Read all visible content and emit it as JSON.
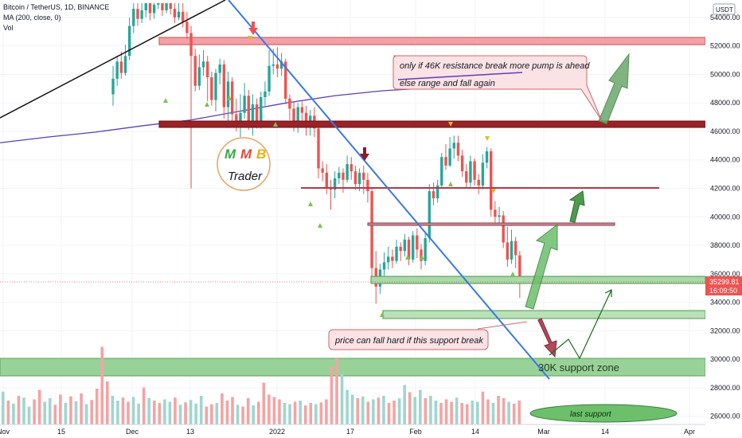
{
  "legend": {
    "line1": "Bitcoin / TetherUS, 1D, BINANCE",
    "line2": "MA (200, close, 0)",
    "line3": "Vol"
  },
  "currency_badge": "USDT",
  "price_axis_ticks": [
    "54000.00",
    "52000.00",
    "50000.00",
    "48000.00",
    "46000.00",
    "44000.00",
    "42000.00",
    "40000.00",
    "38000.00",
    "36000.00",
    "34000.00",
    "32000.00",
    "30000.00",
    "28000.00",
    "26000.00"
  ],
  "time_axis_ticks": [
    "Nov",
    "15",
    "Dec",
    "13",
    "2022",
    "17",
    "Feb",
    "14",
    "Mar",
    "14",
    "Apr"
  ],
  "last_price_tag": {
    "price": "35299.81",
    "countdown": "16:09:50"
  },
  "annotations": {
    "resistance_note_line1": "only if 46K resistance break more pump is ahead",
    "resistance_note_line2": "else range and fall again",
    "support_note": "price can fall hard if this support break",
    "support_zone": "30K support zone",
    "last_support": "last support"
  },
  "logo": {
    "letters": [
      "M",
      "M",
      "B"
    ],
    "name": "Trader"
  },
  "colors": {
    "up": "#26a69a",
    "down": "#ef5350",
    "ma": "#5b3fb8",
    "trendline": "#3b78e7",
    "resistance": "#8b1a1a",
    "pink_zone": "#f5a0a8",
    "support": "#7cc27c",
    "arrow_green": "#4f9a4f",
    "arrow_red": "#b5485a",
    "price_tag": "#ef5350"
  },
  "chart_data": {
    "type": "candlestick",
    "symbol": "Bitcoin / TetherUS",
    "interval": "1D",
    "exchange": "BINANCE",
    "y_range": [
      25700,
      55000
    ],
    "last_price": 35299.81,
    "ma_200": [
      [
        0,
        45200
      ],
      [
        60,
        45600
      ],
      [
        120,
        45950
      ],
      [
        180,
        46400
      ],
      [
        240,
        46800
      ],
      [
        300,
        47400
      ],
      [
        360,
        48000
      ],
      [
        420,
        48500
      ],
      [
        480,
        48850
      ],
      [
        540,
        49050
      ],
      [
        600,
        49150
      ],
      [
        656,
        49250
      ]
    ],
    "candles": [
      {
        "o": 48600,
        "c": 49700,
        "h": 50600,
        "l": 47800
      },
      {
        "o": 49700,
        "c": 50900,
        "h": 51300,
        "l": 49200
      },
      {
        "o": 50900,
        "c": 50100,
        "h": 51600,
        "l": 49700
      },
      {
        "o": 50100,
        "c": 51300,
        "h": 52100,
        "l": 49900
      },
      {
        "o": 51300,
        "c": 53400,
        "h": 54000,
        "l": 51000
      },
      {
        "o": 53400,
        "c": 54600,
        "h": 55000,
        "l": 52900
      },
      {
        "o": 54600,
        "c": 53900,
        "h": 55000,
        "l": 53400
      },
      {
        "o": 53900,
        "c": 54500,
        "h": 55000,
        "l": 53600
      },
      {
        "o": 54500,
        "c": 55000,
        "h": 55000,
        "l": 54000
      },
      {
        "o": 55000,
        "c": 54300,
        "h": 55000,
        "l": 53800
      },
      {
        "o": 54300,
        "c": 54900,
        "h": 55000,
        "l": 53900
      },
      {
        "o": 54900,
        "c": 55000,
        "h": 55000,
        "l": 54600
      },
      {
        "o": 55000,
        "c": 54500,
        "h": 55000,
        "l": 54100
      },
      {
        "o": 54500,
        "c": 55000,
        "h": 55000,
        "l": 54300
      },
      {
        "o": 55000,
        "c": 54600,
        "h": 55000,
        "l": 54200
      },
      {
        "o": 54600,
        "c": 54000,
        "h": 55000,
        "l": 53600
      },
      {
        "o": 54000,
        "c": 54400,
        "h": 55000,
        "l": 53800
      },
      {
        "o": 54400,
        "c": 53700,
        "h": 55000,
        "l": 53300
      },
      {
        "o": 53700,
        "c": 52900,
        "h": 54400,
        "l": 52500
      },
      {
        "o": 52900,
        "c": 51300,
        "h": 53400,
        "l": 42000
      },
      {
        "o": 51300,
        "c": 49200,
        "h": 51800,
        "l": 48800
      },
      {
        "o": 49200,
        "c": 50500,
        "h": 51400,
        "l": 48900
      },
      {
        "o": 50500,
        "c": 50900,
        "h": 51700,
        "l": 49900
      },
      {
        "o": 50900,
        "c": 49800,
        "h": 51300,
        "l": 48100
      },
      {
        "o": 49800,
        "c": 48200,
        "h": 50200,
        "l": 47800
      },
      {
        "o": 48200,
        "c": 50100,
        "h": 50400,
        "l": 47400
      },
      {
        "o": 50100,
        "c": 50700,
        "h": 51100,
        "l": 49300
      },
      {
        "o": 50700,
        "c": 47700,
        "h": 51000,
        "l": 46900
      },
      {
        "o": 47700,
        "c": 49500,
        "h": 50200,
        "l": 46700
      },
      {
        "o": 49500,
        "c": 47200,
        "h": 49800,
        "l": 46500
      },
      {
        "o": 47200,
        "c": 46300,
        "h": 48300,
        "l": 46000
      },
      {
        "o": 46300,
        "c": 47300,
        "h": 48600,
        "l": 45600
      },
      {
        "o": 47300,
        "c": 48500,
        "h": 49400,
        "l": 46900
      },
      {
        "o": 48500,
        "c": 46400,
        "h": 48900,
        "l": 46100
      },
      {
        "o": 46400,
        "c": 47900,
        "h": 48600,
        "l": 45700
      },
      {
        "o": 47900,
        "c": 46600,
        "h": 48300,
        "l": 46200
      },
      {
        "o": 46600,
        "c": 48400,
        "h": 48800,
        "l": 46200
      },
      {
        "o": 48400,
        "c": 48800,
        "h": 49500,
        "l": 47800
      },
      {
        "o": 48800,
        "c": 50600,
        "h": 51700,
        "l": 48500
      },
      {
        "o": 50600,
        "c": 50700,
        "h": 51800,
        "l": 50000
      },
      {
        "o": 50700,
        "c": 50400,
        "h": 51900,
        "l": 49800
      },
      {
        "o": 50400,
        "c": 50900,
        "h": 51500,
        "l": 49900
      },
      {
        "o": 50900,
        "c": 48300,
        "h": 51100,
        "l": 47900
      },
      {
        "o": 48300,
        "c": 47600,
        "h": 48600,
        "l": 46800
      },
      {
        "o": 47600,
        "c": 46400,
        "h": 48100,
        "l": 46000
      },
      {
        "o": 46400,
        "c": 47700,
        "h": 48000,
        "l": 45900
      },
      {
        "o": 47700,
        "c": 47300,
        "h": 48100,
        "l": 46600
      },
      {
        "o": 47300,
        "c": 46400,
        "h": 47800,
        "l": 45700
      },
      {
        "o": 46400,
        "c": 47100,
        "h": 47500,
        "l": 45700
      },
      {
        "o": 47100,
        "c": 46200,
        "h": 47700,
        "l": 45600
      },
      {
        "o": 46200,
        "c": 43400,
        "h": 46600,
        "l": 42700
      },
      {
        "o": 43400,
        "c": 43100,
        "h": 43900,
        "l": 42500
      },
      {
        "o": 43100,
        "c": 42000,
        "h": 43700,
        "l": 41600
      },
      {
        "o": 42000,
        "c": 41900,
        "h": 42600,
        "l": 40500
      },
      {
        "o": 41900,
        "c": 42700,
        "h": 43200,
        "l": 41300
      },
      {
        "o": 42700,
        "c": 43100,
        "h": 43500,
        "l": 42300
      },
      {
        "o": 43100,
        "c": 42600,
        "h": 43400,
        "l": 41700
      },
      {
        "o": 42600,
        "c": 43700,
        "h": 44300,
        "l": 42400
      },
      {
        "o": 43700,
        "c": 43200,
        "h": 44200,
        "l": 42600
      },
      {
        "o": 43200,
        "c": 42300,
        "h": 43600,
        "l": 41900
      },
      {
        "o": 42300,
        "c": 43100,
        "h": 43400,
        "l": 41800
      },
      {
        "o": 43100,
        "c": 42600,
        "h": 43600,
        "l": 41600
      },
      {
        "o": 42600,
        "c": 41800,
        "h": 43100,
        "l": 41000
      },
      {
        "o": 41800,
        "c": 36400,
        "h": 42100,
        "l": 35600
      },
      {
        "o": 36400,
        "c": 35100,
        "h": 37600,
        "l": 33900
      },
      {
        "o": 35100,
        "c": 36300,
        "h": 36700,
        "l": 34600
      },
      {
        "o": 36300,
        "c": 36800,
        "h": 37500,
        "l": 35700
      },
      {
        "o": 36800,
        "c": 37200,
        "h": 37900,
        "l": 36300
      },
      {
        "o": 37200,
        "c": 36900,
        "h": 37700,
        "l": 36400
      },
      {
        "o": 36900,
        "c": 37900,
        "h": 38400,
        "l": 36700
      },
      {
        "o": 37900,
        "c": 37600,
        "h": 38200,
        "l": 36900
      },
      {
        "o": 37600,
        "c": 38400,
        "h": 38800,
        "l": 37200
      },
      {
        "o": 38400,
        "c": 37000,
        "h": 38600,
        "l": 36600
      },
      {
        "o": 37000,
        "c": 38700,
        "h": 39000,
        "l": 36800
      },
      {
        "o": 38700,
        "c": 37700,
        "h": 39200,
        "l": 37100
      },
      {
        "o": 37700,
        "c": 36900,
        "h": 38100,
        "l": 36300
      },
      {
        "o": 36900,
        "c": 38500,
        "h": 38900,
        "l": 36600
      },
      {
        "o": 38500,
        "c": 41800,
        "h": 42300,
        "l": 38200
      },
      {
        "o": 41800,
        "c": 41300,
        "h": 42400,
        "l": 40800
      },
      {
        "o": 41300,
        "c": 42200,
        "h": 42600,
        "l": 41000
      },
      {
        "o": 42200,
        "c": 44200,
        "h": 44500,
        "l": 42000
      },
      {
        "o": 44200,
        "c": 43600,
        "h": 45100,
        "l": 43300
      },
      {
        "o": 43600,
        "c": 44800,
        "h": 45600,
        "l": 43500
      },
      {
        "o": 44800,
        "c": 45200,
        "h": 45700,
        "l": 44100
      },
      {
        "o": 45200,
        "c": 44300,
        "h": 45700,
        "l": 43900
      },
      {
        "o": 44300,
        "c": 43200,
        "h": 44700,
        "l": 42800
      },
      {
        "o": 43200,
        "c": 42400,
        "h": 43700,
        "l": 42000
      },
      {
        "o": 42400,
        "c": 43900,
        "h": 44300,
        "l": 42100
      },
      {
        "o": 43900,
        "c": 42600,
        "h": 44100,
        "l": 42200
      },
      {
        "o": 42600,
        "c": 42200,
        "h": 43000,
        "l": 41600
      },
      {
        "o": 42200,
        "c": 43800,
        "h": 44400,
        "l": 41900
      },
      {
        "o": 43800,
        "c": 44600,
        "h": 44900,
        "l": 43400
      },
      {
        "o": 44600,
        "c": 40500,
        "h": 44800,
        "l": 40000
      },
      {
        "o": 40500,
        "c": 40000,
        "h": 41100,
        "l": 39500
      },
      {
        "o": 40000,
        "c": 40100,
        "h": 40700,
        "l": 39400
      },
      {
        "o": 40100,
        "c": 38200,
        "h": 40400,
        "l": 37800
      },
      {
        "o": 38200,
        "c": 37000,
        "h": 39300,
        "l": 36500
      },
      {
        "o": 37000,
        "c": 38300,
        "h": 39100,
        "l": 36700
      },
      {
        "o": 38300,
        "c": 37300,
        "h": 38600,
        "l": 36400
      },
      {
        "o": 37300,
        "c": 35300,
        "h": 37600,
        "l": 34300
      }
    ],
    "volume_bars": [
      {
        "v": 55,
        "d": "up"
      },
      {
        "v": 40,
        "d": "down"
      },
      {
        "v": 35,
        "d": "up"
      },
      {
        "v": 48,
        "d": "down"
      },
      {
        "v": 45,
        "d": "up"
      },
      {
        "v": 30,
        "d": "up"
      },
      {
        "v": 42,
        "d": "down"
      },
      {
        "v": 58,
        "d": "down"
      },
      {
        "v": 38,
        "d": "up"
      },
      {
        "v": 44,
        "d": "up"
      },
      {
        "v": 33,
        "d": "down"
      },
      {
        "v": 50,
        "d": "down"
      },
      {
        "v": 36,
        "d": "up"
      },
      {
        "v": 47,
        "d": "down"
      },
      {
        "v": 39,
        "d": "up"
      },
      {
        "v": 52,
        "d": "down"
      },
      {
        "v": 34,
        "d": "up"
      },
      {
        "v": 41,
        "d": "down"
      },
      {
        "v": 60,
        "d": "down"
      },
      {
        "v": 130,
        "d": "down"
      },
      {
        "v": 72,
        "d": "down"
      },
      {
        "v": 48,
        "d": "up"
      },
      {
        "v": 40,
        "d": "up"
      },
      {
        "v": 45,
        "d": "down"
      },
      {
        "v": 38,
        "d": "down"
      },
      {
        "v": 46,
        "d": "up"
      },
      {
        "v": 35,
        "d": "up"
      },
      {
        "v": 62,
        "d": "down"
      },
      {
        "v": 44,
        "d": "up"
      },
      {
        "v": 40,
        "d": "down"
      },
      {
        "v": 36,
        "d": "down"
      },
      {
        "v": 42,
        "d": "up"
      },
      {
        "v": 38,
        "d": "up"
      },
      {
        "v": 45,
        "d": "down"
      },
      {
        "v": 33,
        "d": "up"
      },
      {
        "v": 37,
        "d": "down"
      },
      {
        "v": 41,
        "d": "up"
      },
      {
        "v": 35,
        "d": "up"
      },
      {
        "v": 48,
        "d": "up"
      },
      {
        "v": 30,
        "d": "down"
      },
      {
        "v": 34,
        "d": "down"
      },
      {
        "v": 36,
        "d": "up"
      },
      {
        "v": 52,
        "d": "down"
      },
      {
        "v": 40,
        "d": "down"
      },
      {
        "v": 46,
        "d": "down"
      },
      {
        "v": 33,
        "d": "up"
      },
      {
        "v": 30,
        "d": "down"
      },
      {
        "v": 44,
        "d": "down"
      },
      {
        "v": 32,
        "d": "up"
      },
      {
        "v": 38,
        "d": "down"
      },
      {
        "v": 70,
        "d": "down"
      },
      {
        "v": 50,
        "d": "down"
      },
      {
        "v": 46,
        "d": "down"
      },
      {
        "v": 42,
        "d": "down"
      },
      {
        "v": 36,
        "d": "up"
      },
      {
        "v": 34,
        "d": "up"
      },
      {
        "v": 38,
        "d": "down"
      },
      {
        "v": 40,
        "d": "up"
      },
      {
        "v": 32,
        "d": "down"
      },
      {
        "v": 36,
        "d": "down"
      },
      {
        "v": 34,
        "d": "up"
      },
      {
        "v": 37,
        "d": "down"
      },
      {
        "v": 42,
        "d": "down"
      },
      {
        "v": 98,
        "d": "down"
      },
      {
        "v": 112,
        "d": "down"
      },
      {
        "v": 85,
        "d": "up"
      },
      {
        "v": 58,
        "d": "up"
      },
      {
        "v": 50,
        "d": "up"
      },
      {
        "v": 44,
        "d": "down"
      },
      {
        "v": 47,
        "d": "up"
      },
      {
        "v": 38,
        "d": "down"
      },
      {
        "v": 42,
        "d": "up"
      },
      {
        "v": 45,
        "d": "down"
      },
      {
        "v": 48,
        "d": "up"
      },
      {
        "v": 36,
        "d": "down"
      },
      {
        "v": 40,
        "d": "down"
      },
      {
        "v": 44,
        "d": "up"
      },
      {
        "v": 66,
        "d": "up"
      },
      {
        "v": 54,
        "d": "down"
      },
      {
        "v": 46,
        "d": "up"
      },
      {
        "v": 58,
        "d": "up"
      },
      {
        "v": 44,
        "d": "down"
      },
      {
        "v": 48,
        "d": "up"
      },
      {
        "v": 40,
        "d": "up"
      },
      {
        "v": 36,
        "d": "down"
      },
      {
        "v": 42,
        "d": "down"
      },
      {
        "v": 38,
        "d": "down"
      },
      {
        "v": 45,
        "d": "up"
      },
      {
        "v": 36,
        "d": "down"
      },
      {
        "v": 34,
        "d": "down"
      },
      {
        "v": 40,
        "d": "up"
      },
      {
        "v": 38,
        "d": "up"
      },
      {
        "v": 55,
        "d": "down"
      },
      {
        "v": 42,
        "d": "down"
      },
      {
        "v": 36,
        "d": "up"
      },
      {
        "v": 48,
        "d": "down"
      },
      {
        "v": 44,
        "d": "down"
      },
      {
        "v": 38,
        "d": "up"
      },
      {
        "v": 35,
        "d": "down"
      },
      {
        "v": 40,
        "d": "down"
      }
    ],
    "zones": [
      {
        "name": "pink-resistance",
        "from": 51200,
        "to": 51800
      },
      {
        "name": "46k-resistance",
        "from": 45800,
        "to": 46200
      },
      {
        "name": "42k-line",
        "from": 41500,
        "to": 41600
      },
      {
        "name": "39k-band",
        "from": 39100,
        "to": 39300
      },
      {
        "name": "35k-support",
        "from": 35200,
        "to": 35600
      },
      {
        "name": "33k-support",
        "from": 32700,
        "to": 33200
      },
      {
        "name": "30k-support-zone",
        "from": 28900,
        "to": 30000
      }
    ]
  }
}
